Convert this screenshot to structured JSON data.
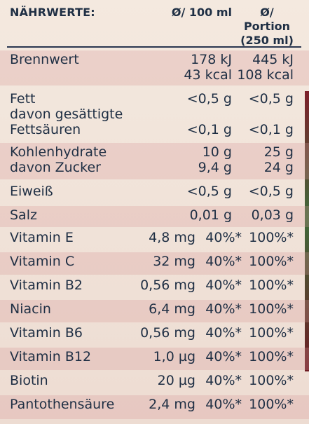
{
  "header": {
    "title": "NÄHRWERTE:",
    "col_100ml": "Ø/ 100 ml",
    "col_portion_line1": "Ø/ Portion",
    "col_portion_line2": "(250 ml)"
  },
  "rows": [
    {
      "name": [
        "Brennwert"
      ],
      "per100": [
        "178 kJ",
        "43 kcal"
      ],
      "portion": [
        "445 kJ",
        "108 kcal"
      ]
    },
    {
      "name": [
        "Fett",
        "davon gesättigte",
        "Fettsäuren"
      ],
      "per100": [
        "<0,5 g",
        "",
        "<0,1 g"
      ],
      "portion": [
        "<0,5 g",
        "",
        "<0,1 g"
      ]
    },
    {
      "name": [
        "Kohlenhydrate",
        "davon Zucker"
      ],
      "per100": [
        "10 g",
        "9,4 g"
      ],
      "portion": [
        "25 g",
        "24 g"
      ]
    },
    {
      "name": [
        "Eiweiß"
      ],
      "per100": [
        "<0,5 g"
      ],
      "portion": [
        "<0,5 g"
      ]
    },
    {
      "name": [
        "Salz"
      ],
      "per100": [
        "0,01 g"
      ],
      "portion": [
        "0,03 g"
      ]
    }
  ],
  "vitamins": [
    {
      "name": "Vitamin E",
      "amount": "4,8 mg",
      "pct100": "40%*",
      "pctPortion": "100%*"
    },
    {
      "name": "Vitamin C",
      "amount": "32 mg",
      "pct100": "40%*",
      "pctPortion": "100%*"
    },
    {
      "name": "Vitamin B2",
      "amount": "0,56 mg",
      "pct100": "40%*",
      "pctPortion": "100%*"
    },
    {
      "name": "Niacin",
      "amount": "6,4 mg",
      "pct100": "40%*",
      "pctPortion": "100%*"
    },
    {
      "name": "Vitamin B6",
      "amount": "0,56 mg",
      "pct100": "40%*",
      "pctPortion": "100%*"
    },
    {
      "name": "Vitamin B12",
      "amount": "1,0 µg",
      "pct100": "40%*",
      "pctPortion": "100%*"
    },
    {
      "name": "Biotin",
      "amount": "20 µg",
      "pct100": "40%*",
      "pctPortion": "100%*"
    },
    {
      "name": "Pantothensäure",
      "amount": "2,4 mg",
      "pct100": "40%*",
      "pctPortion": "100%*"
    }
  ],
  "colors": {
    "text": "#1f2f44",
    "shade": "#d69696",
    "background": "#f4e9df"
  }
}
